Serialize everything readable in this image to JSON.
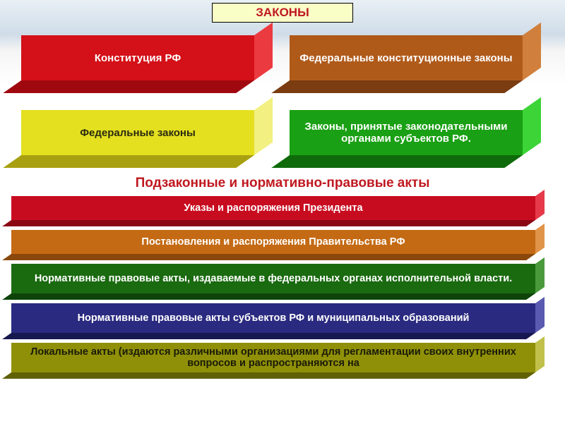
{
  "header": {
    "label": "ЗАКОНЫ",
    "bg_color": "#f9fec6",
    "text_color": "#c01820",
    "border_color": "#000000"
  },
  "top_boxes": [
    {
      "label": "Конституция РФ",
      "front": "#d41018",
      "side": "#a00810",
      "side2": "#eb3a40",
      "text": "#ffffff"
    },
    {
      "label": "Федеральные конституционные законы",
      "front": "#b05a1a",
      "side": "#7a3c10",
      "side2": "#d0803c",
      "text": "#ffffff"
    },
    {
      "label": "Федеральные законы",
      "front": "#e4e020",
      "side": "#a8a010",
      "side2": "#f2f080",
      "text": "#2a2a10"
    },
    {
      "label": "Законы, принятые законодательными органами субъектов РФ.",
      "front": "#1aa014",
      "side": "#0e6a0a",
      "side2": "#3cd436",
      "text": "#ffffff"
    }
  ],
  "subtitle": "Подзаконные и нормативно-правовые акты",
  "bars": [
    {
      "label": "Указы и  распоряжения Президента",
      "front": "#c80c20",
      "side": "#8a0614",
      "side2": "#e63a4a",
      "text": "#ffffff",
      "tall": false
    },
    {
      "label": "Постановления и распоряжения Правительства РФ",
      "front": "#c46a14",
      "side": "#8a480c",
      "side2": "#e0944a",
      "text": "#ffffff",
      "tall": false
    },
    {
      "label": "Нормативные правовые акты, издаваемые в  федеральных органах исполнительной власти.",
      "front": "#1a6a10",
      "side": "#0e440a",
      "side2": "#4a9a3c",
      "text": "#ffffff",
      "tall": true
    },
    {
      "label": "Нормативные правовые акты субъектов РФ и муниципальных образований",
      "front": "#2a2a80",
      "side": "#181850",
      "side2": "#5a5ab0",
      "text": "#ffffff",
      "tall": true
    },
    {
      "label": "Локальные акты (издаются различными организациями для регламентации своих внутренних вопросов и распространяются на",
      "front": "#909008",
      "side": "#606004",
      "side2": "#c0c04a",
      "text": "#1a1a08",
      "tall": true
    }
  ]
}
